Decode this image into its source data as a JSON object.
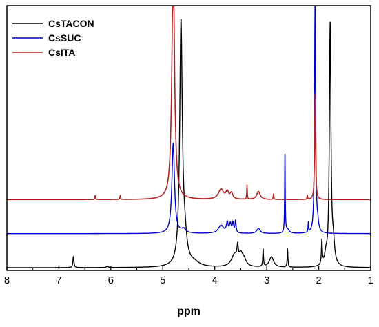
{
  "chart_data": {
    "type": "line",
    "title": "",
    "xlabel": "ppm",
    "ylabel": "",
    "xlim": [
      8,
      1
    ],
    "x_reversed": true,
    "x_ticks": [
      "8",
      "7",
      "6",
      "5",
      "4",
      "3",
      "2",
      "1"
    ],
    "legend_position": "top-left",
    "grid": false,
    "series": [
      {
        "name": "CsTACON",
        "color": "#000000",
        "baseline": 0.0,
        "peaks": [
          {
            "ppm": 6.72,
            "height": 0.055,
            "width": 0.012
          },
          {
            "ppm": 6.07,
            "height": 0.006,
            "width": 0.02
          },
          {
            "ppm": 4.65,
            "height": 1.2,
            "width": 0.03
          },
          {
            "ppm": 4.58,
            "height": 0.12,
            "width": 0.05
          },
          {
            "ppm": 4.4,
            "height": 0.02,
            "width": 0.12
          },
          {
            "ppm": 3.62,
            "height": 0.06,
            "width": 0.07
          },
          {
            "ppm": 3.56,
            "height": 0.07,
            "width": 0.015
          },
          {
            "ppm": 3.5,
            "height": 0.05,
            "width": 0.04
          },
          {
            "ppm": 3.44,
            "height": 0.035,
            "width": 0.05
          },
          {
            "ppm": 3.07,
            "height": 0.09,
            "width": 0.008
          },
          {
            "ppm": 2.91,
            "height": 0.052,
            "width": 0.05
          },
          {
            "ppm": 2.6,
            "height": 0.09,
            "width": 0.008
          },
          {
            "ppm": 1.94,
            "height": 0.12,
            "width": 0.01
          },
          {
            "ppm": 1.86,
            "height": 0.05,
            "width": 0.03
          },
          {
            "ppm": 1.78,
            "height": 1.2,
            "width": 0.018
          },
          {
            "ppm": 1.72,
            "height": 0.1,
            "width": 0.03
          }
        ]
      },
      {
        "name": "CsSUC",
        "color": "#0000cc",
        "baseline": 0.17,
        "peaks": [
          {
            "ppm": 4.8,
            "height": 0.45,
            "width": 0.03
          },
          {
            "ppm": 4.6,
            "height": 0.02,
            "width": 0.05
          },
          {
            "ppm": 3.88,
            "height": 0.04,
            "width": 0.06
          },
          {
            "ppm": 3.76,
            "height": 0.05,
            "width": 0.02
          },
          {
            "ppm": 3.7,
            "height": 0.045,
            "width": 0.02
          },
          {
            "ppm": 3.65,
            "height": 0.05,
            "width": 0.015
          },
          {
            "ppm": 3.6,
            "height": 0.06,
            "width": 0.012
          },
          {
            "ppm": 3.16,
            "height": 0.025,
            "width": 0.04
          },
          {
            "ppm": 2.65,
            "height": 0.43,
            "width": 0.006
          },
          {
            "ppm": 2.6,
            "height": 0.02,
            "width": 0.04
          },
          {
            "ppm": 2.2,
            "height": 0.05,
            "width": 0.006
          },
          {
            "ppm": 2.07,
            "height": 1.2,
            "width": 0.012
          },
          {
            "ppm": 2.02,
            "height": 0.04,
            "width": 0.02
          }
        ]
      },
      {
        "name": "CsITA",
        "color": "#b22222",
        "baseline": 0.34,
        "peaks": [
          {
            "ppm": 6.3,
            "height": 0.02,
            "width": 0.008
          },
          {
            "ppm": 5.82,
            "height": 0.02,
            "width": 0.008
          },
          {
            "ppm": 4.8,
            "height": 1.2,
            "width": 0.03
          },
          {
            "ppm": 3.88,
            "height": 0.05,
            "width": 0.06
          },
          {
            "ppm": 3.76,
            "height": 0.035,
            "width": 0.03
          },
          {
            "ppm": 3.68,
            "height": 0.03,
            "width": 0.03
          },
          {
            "ppm": 3.38,
            "height": 0.07,
            "width": 0.006
          },
          {
            "ppm": 3.16,
            "height": 0.04,
            "width": 0.04
          },
          {
            "ppm": 2.87,
            "height": 0.03,
            "width": 0.006
          },
          {
            "ppm": 2.22,
            "height": 0.02,
            "width": 0.006
          },
          {
            "ppm": 2.07,
            "height": 0.55,
            "width": 0.01
          }
        ]
      }
    ]
  }
}
